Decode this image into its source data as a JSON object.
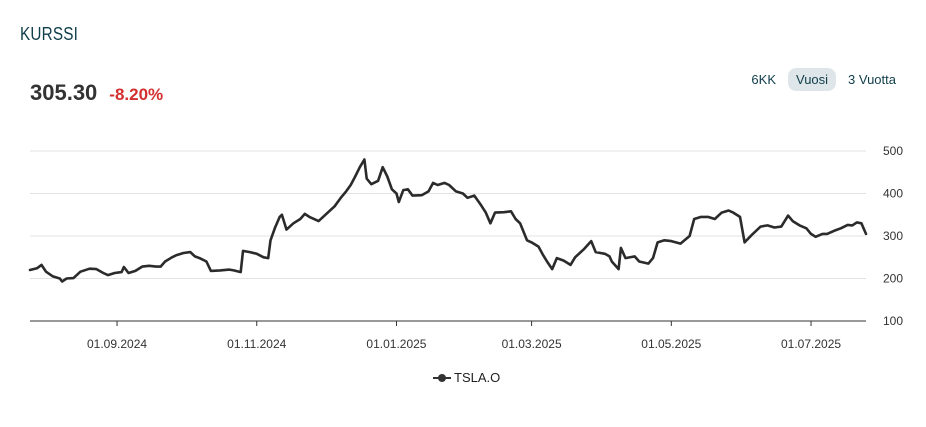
{
  "header": {
    "title": "KURSSI"
  },
  "quote": {
    "price": "305.30",
    "change": "-8.20%"
  },
  "range_tabs": [
    {
      "label": "6KK",
      "active": false
    },
    {
      "label": "Vuosi",
      "active": true
    },
    {
      "label": "3 Vuotta",
      "active": false
    }
  ],
  "colors": {
    "line": "#2b2b2b",
    "negative": "#d32f2f",
    "title": "#0f3d4a",
    "active_tab": "#dfe6e9"
  },
  "chart_data": {
    "type": "line",
    "title": "",
    "xlabel": "",
    "ylabel": "",
    "ylim": [
      100,
      500
    ],
    "yticks": [
      100,
      200,
      300,
      400,
      500
    ],
    "xlim": [
      "2024-07-25",
      "2025-07-25"
    ],
    "xticks": [
      "01.09.2024",
      "01.11.2024",
      "01.01.2025",
      "01.03.2025",
      "01.05.2025",
      "01.07.2025"
    ],
    "grid": "horizontal",
    "legend": "bottom-center",
    "series": [
      {
        "name": "TSLA.O",
        "points": [
          [
            "2024-07-25",
            220
          ],
          [
            "2024-07-28",
            224
          ],
          [
            "2024-07-30",
            232
          ],
          [
            "2024-08-01",
            216
          ],
          [
            "2024-08-04",
            205
          ],
          [
            "2024-08-07",
            200
          ],
          [
            "2024-08-08",
            193
          ],
          [
            "2024-08-10",
            200
          ],
          [
            "2024-08-13",
            201
          ],
          [
            "2024-08-16",
            216
          ],
          [
            "2024-08-20",
            223
          ],
          [
            "2024-08-23",
            222
          ],
          [
            "2024-08-26",
            213
          ],
          [
            "2024-08-28",
            208
          ],
          [
            "2024-08-31",
            213
          ],
          [
            "2024-09-03",
            215
          ],
          [
            "2024-09-04",
            227
          ],
          [
            "2024-09-06",
            213
          ],
          [
            "2024-09-09",
            218
          ],
          [
            "2024-09-12",
            228
          ],
          [
            "2024-09-15",
            230
          ],
          [
            "2024-09-18",
            228
          ],
          [
            "2024-09-20",
            228
          ],
          [
            "2024-09-22",
            240
          ],
          [
            "2024-09-25",
            250
          ],
          [
            "2024-09-27",
            255
          ],
          [
            "2024-09-30",
            260
          ],
          [
            "2024-10-03",
            262
          ],
          [
            "2024-10-05",
            252
          ],
          [
            "2024-10-07",
            248
          ],
          [
            "2024-10-10",
            240
          ],
          [
            "2024-10-12",
            218
          ],
          [
            "2024-10-16",
            219
          ],
          [
            "2024-10-20",
            221
          ],
          [
            "2024-10-22",
            219
          ],
          [
            "2024-10-25",
            215
          ],
          [
            "2024-10-26",
            265
          ],
          [
            "2024-10-29",
            262
          ],
          [
            "2024-11-01",
            258
          ],
          [
            "2024-11-04",
            250
          ],
          [
            "2024-11-06",
            248
          ],
          [
            "2024-11-07",
            290
          ],
          [
            "2024-11-09",
            320
          ],
          [
            "2024-11-11",
            345
          ],
          [
            "2024-11-12",
            350
          ],
          [
            "2024-11-14",
            315
          ],
          [
            "2024-11-17",
            330
          ],
          [
            "2024-11-20",
            340
          ],
          [
            "2024-11-22",
            352
          ],
          [
            "2024-11-24",
            345
          ],
          [
            "2024-11-28",
            335
          ],
          [
            "2024-12-02",
            355
          ],
          [
            "2024-12-05",
            370
          ],
          [
            "2024-12-08",
            392
          ],
          [
            "2024-12-10",
            405
          ],
          [
            "2024-12-12",
            420
          ],
          [
            "2024-12-14",
            440
          ],
          [
            "2024-12-16",
            462
          ],
          [
            "2024-12-18",
            480
          ],
          [
            "2024-12-19",
            435
          ],
          [
            "2024-12-21",
            422
          ],
          [
            "2024-12-24",
            430
          ],
          [
            "2024-12-26",
            462
          ],
          [
            "2024-12-28",
            440
          ],
          [
            "2024-12-30",
            410
          ],
          [
            "2025-01-01",
            400
          ],
          [
            "2025-01-02",
            380
          ],
          [
            "2025-01-04",
            408
          ],
          [
            "2025-01-06",
            410
          ],
          [
            "2025-01-08",
            395
          ],
          [
            "2025-01-12",
            396
          ],
          [
            "2025-01-15",
            405
          ],
          [
            "2025-01-17",
            425
          ],
          [
            "2025-01-19",
            420
          ],
          [
            "2025-01-22",
            425
          ],
          [
            "2025-01-24",
            420
          ],
          [
            "2025-01-27",
            405
          ],
          [
            "2025-01-30",
            400
          ],
          [
            "2025-02-01",
            390
          ],
          [
            "2025-02-04",
            395
          ],
          [
            "2025-02-07",
            372
          ],
          [
            "2025-02-09",
            355
          ],
          [
            "2025-02-11",
            330
          ],
          [
            "2025-02-13",
            355
          ],
          [
            "2025-02-17",
            356
          ],
          [
            "2025-02-20",
            358
          ],
          [
            "2025-02-22",
            340
          ],
          [
            "2025-02-24",
            330
          ],
          [
            "2025-02-27",
            290
          ],
          [
            "2025-03-01",
            285
          ],
          [
            "2025-03-04",
            275
          ],
          [
            "2025-03-06",
            255
          ],
          [
            "2025-03-08",
            238
          ],
          [
            "2025-03-10",
            222
          ],
          [
            "2025-03-12",
            248
          ],
          [
            "2025-03-15",
            242
          ],
          [
            "2025-03-18",
            232
          ],
          [
            "2025-03-20",
            250
          ],
          [
            "2025-03-24",
            270
          ],
          [
            "2025-03-27",
            288
          ],
          [
            "2025-03-29",
            262
          ],
          [
            "2025-04-02",
            258
          ],
          [
            "2025-04-04",
            252
          ],
          [
            "2025-04-05",
            240
          ],
          [
            "2025-04-08",
            222
          ],
          [
            "2025-04-09",
            272
          ],
          [
            "2025-04-11",
            248
          ],
          [
            "2025-04-15",
            252
          ],
          [
            "2025-04-17",
            240
          ],
          [
            "2025-04-21",
            235
          ],
          [
            "2025-04-23",
            248
          ],
          [
            "2025-04-25",
            285
          ],
          [
            "2025-04-28",
            290
          ],
          [
            "2025-05-01",
            288
          ],
          [
            "2025-05-05",
            282
          ],
          [
            "2025-05-09",
            300
          ],
          [
            "2025-05-11",
            340
          ],
          [
            "2025-05-14",
            345
          ],
          [
            "2025-05-17",
            345
          ],
          [
            "2025-05-20",
            340
          ],
          [
            "2025-05-23",
            355
          ],
          [
            "2025-05-26",
            360
          ],
          [
            "2025-05-28",
            355
          ],
          [
            "2025-05-31",
            345
          ],
          [
            "2025-06-02",
            285
          ],
          [
            "2025-06-05",
            302
          ],
          [
            "2025-06-09",
            322
          ],
          [
            "2025-06-12",
            325
          ],
          [
            "2025-06-15",
            320
          ],
          [
            "2025-06-18",
            322
          ],
          [
            "2025-06-21",
            348
          ],
          [
            "2025-06-23",
            335
          ],
          [
            "2025-06-26",
            325
          ],
          [
            "2025-06-29",
            318
          ],
          [
            "2025-07-01",
            305
          ],
          [
            "2025-07-03",
            298
          ],
          [
            "2025-07-06",
            305
          ],
          [
            "2025-07-08",
            305
          ],
          [
            "2025-07-11",
            312
          ],
          [
            "2025-07-14",
            318
          ],
          [
            "2025-07-17",
            326
          ],
          [
            "2025-07-19",
            325
          ],
          [
            "2025-07-21",
            332
          ],
          [
            "2025-07-23",
            330
          ],
          [
            "2025-07-25",
            305
          ]
        ]
      }
    ]
  }
}
